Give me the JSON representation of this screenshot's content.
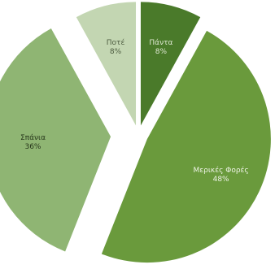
{
  "chart_data": {
    "type": "pie",
    "title": "",
    "slices": [
      {
        "label": "Πάντα",
        "value": 8,
        "value_label": "8%",
        "color": "#4a7a2a",
        "label_color": "#dfe8d3"
      },
      {
        "label": "Μερικές Φορές",
        "value": 48,
        "value_label": "48%",
        "color": "#6a9a3c",
        "label_color": "#eef3e6"
      },
      {
        "label": "Σπάνια",
        "value": 36,
        "value_label": "36%",
        "color": "#8fb573",
        "label_color": "#26361a"
      },
      {
        "label": "Ποτέ",
        "value": 8,
        "value_label": "8%",
        "color": "#c3d6b2",
        "label_color": "#4d5c40"
      }
    ],
    "exploded": true,
    "legend": "none"
  }
}
